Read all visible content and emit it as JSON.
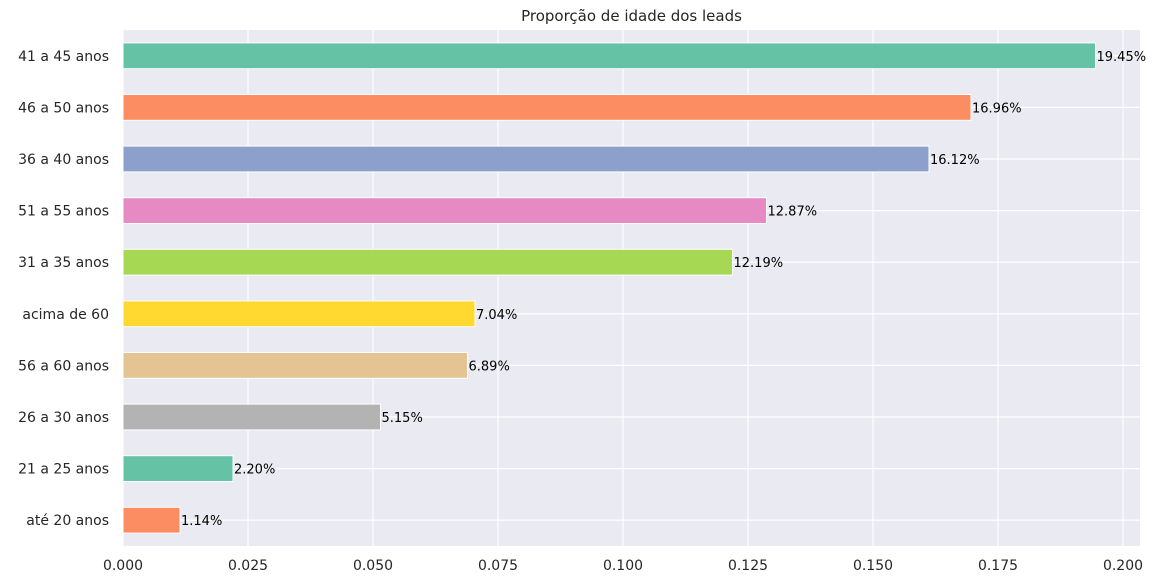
{
  "chart_data": {
    "type": "bar",
    "orientation": "horizontal",
    "title": "Proporção de idade dos leads",
    "xlabel": "",
    "ylabel": "",
    "categories": [
      "41 a 45 anos",
      "46 a 50 anos",
      "36 a 40 anos",
      "51 a 55 anos",
      "31 a 35 anos",
      "acima de 60",
      "56 a 60 anos",
      "26 a 30 anos",
      "21 a 25 anos",
      "até 20 anos"
    ],
    "values": [
      0.1945,
      0.1696,
      0.1612,
      0.1287,
      0.1219,
      0.0704,
      0.0689,
      0.0515,
      0.022,
      0.0114
    ],
    "data_labels": [
      "19.45%",
      "16.96%",
      "16.12%",
      "12.87%",
      "12.19%",
      "7.04%",
      "6.89%",
      "5.15%",
      "2.20%",
      "1.14%"
    ],
    "colors": [
      "#66c2a5",
      "#fc8d62",
      "#8da0cb",
      "#e78ac3",
      "#a6d854",
      "#ffd92f",
      "#e5c494",
      "#b3b3b3",
      "#66c2a5",
      "#fc8d62"
    ],
    "xlim": [
      0,
      0.2034
    ],
    "xticks": [
      0.0,
      0.025,
      0.05,
      0.075,
      0.1,
      0.125,
      0.15,
      0.175,
      0.2
    ],
    "xtick_labels": [
      "0.000",
      "0.025",
      "0.050",
      "0.075",
      "0.100",
      "0.125",
      "0.150",
      "0.175",
      "0.200"
    ],
    "grid": true,
    "background": "#eaeaf2",
    "grid_color": "#ffffff"
  }
}
